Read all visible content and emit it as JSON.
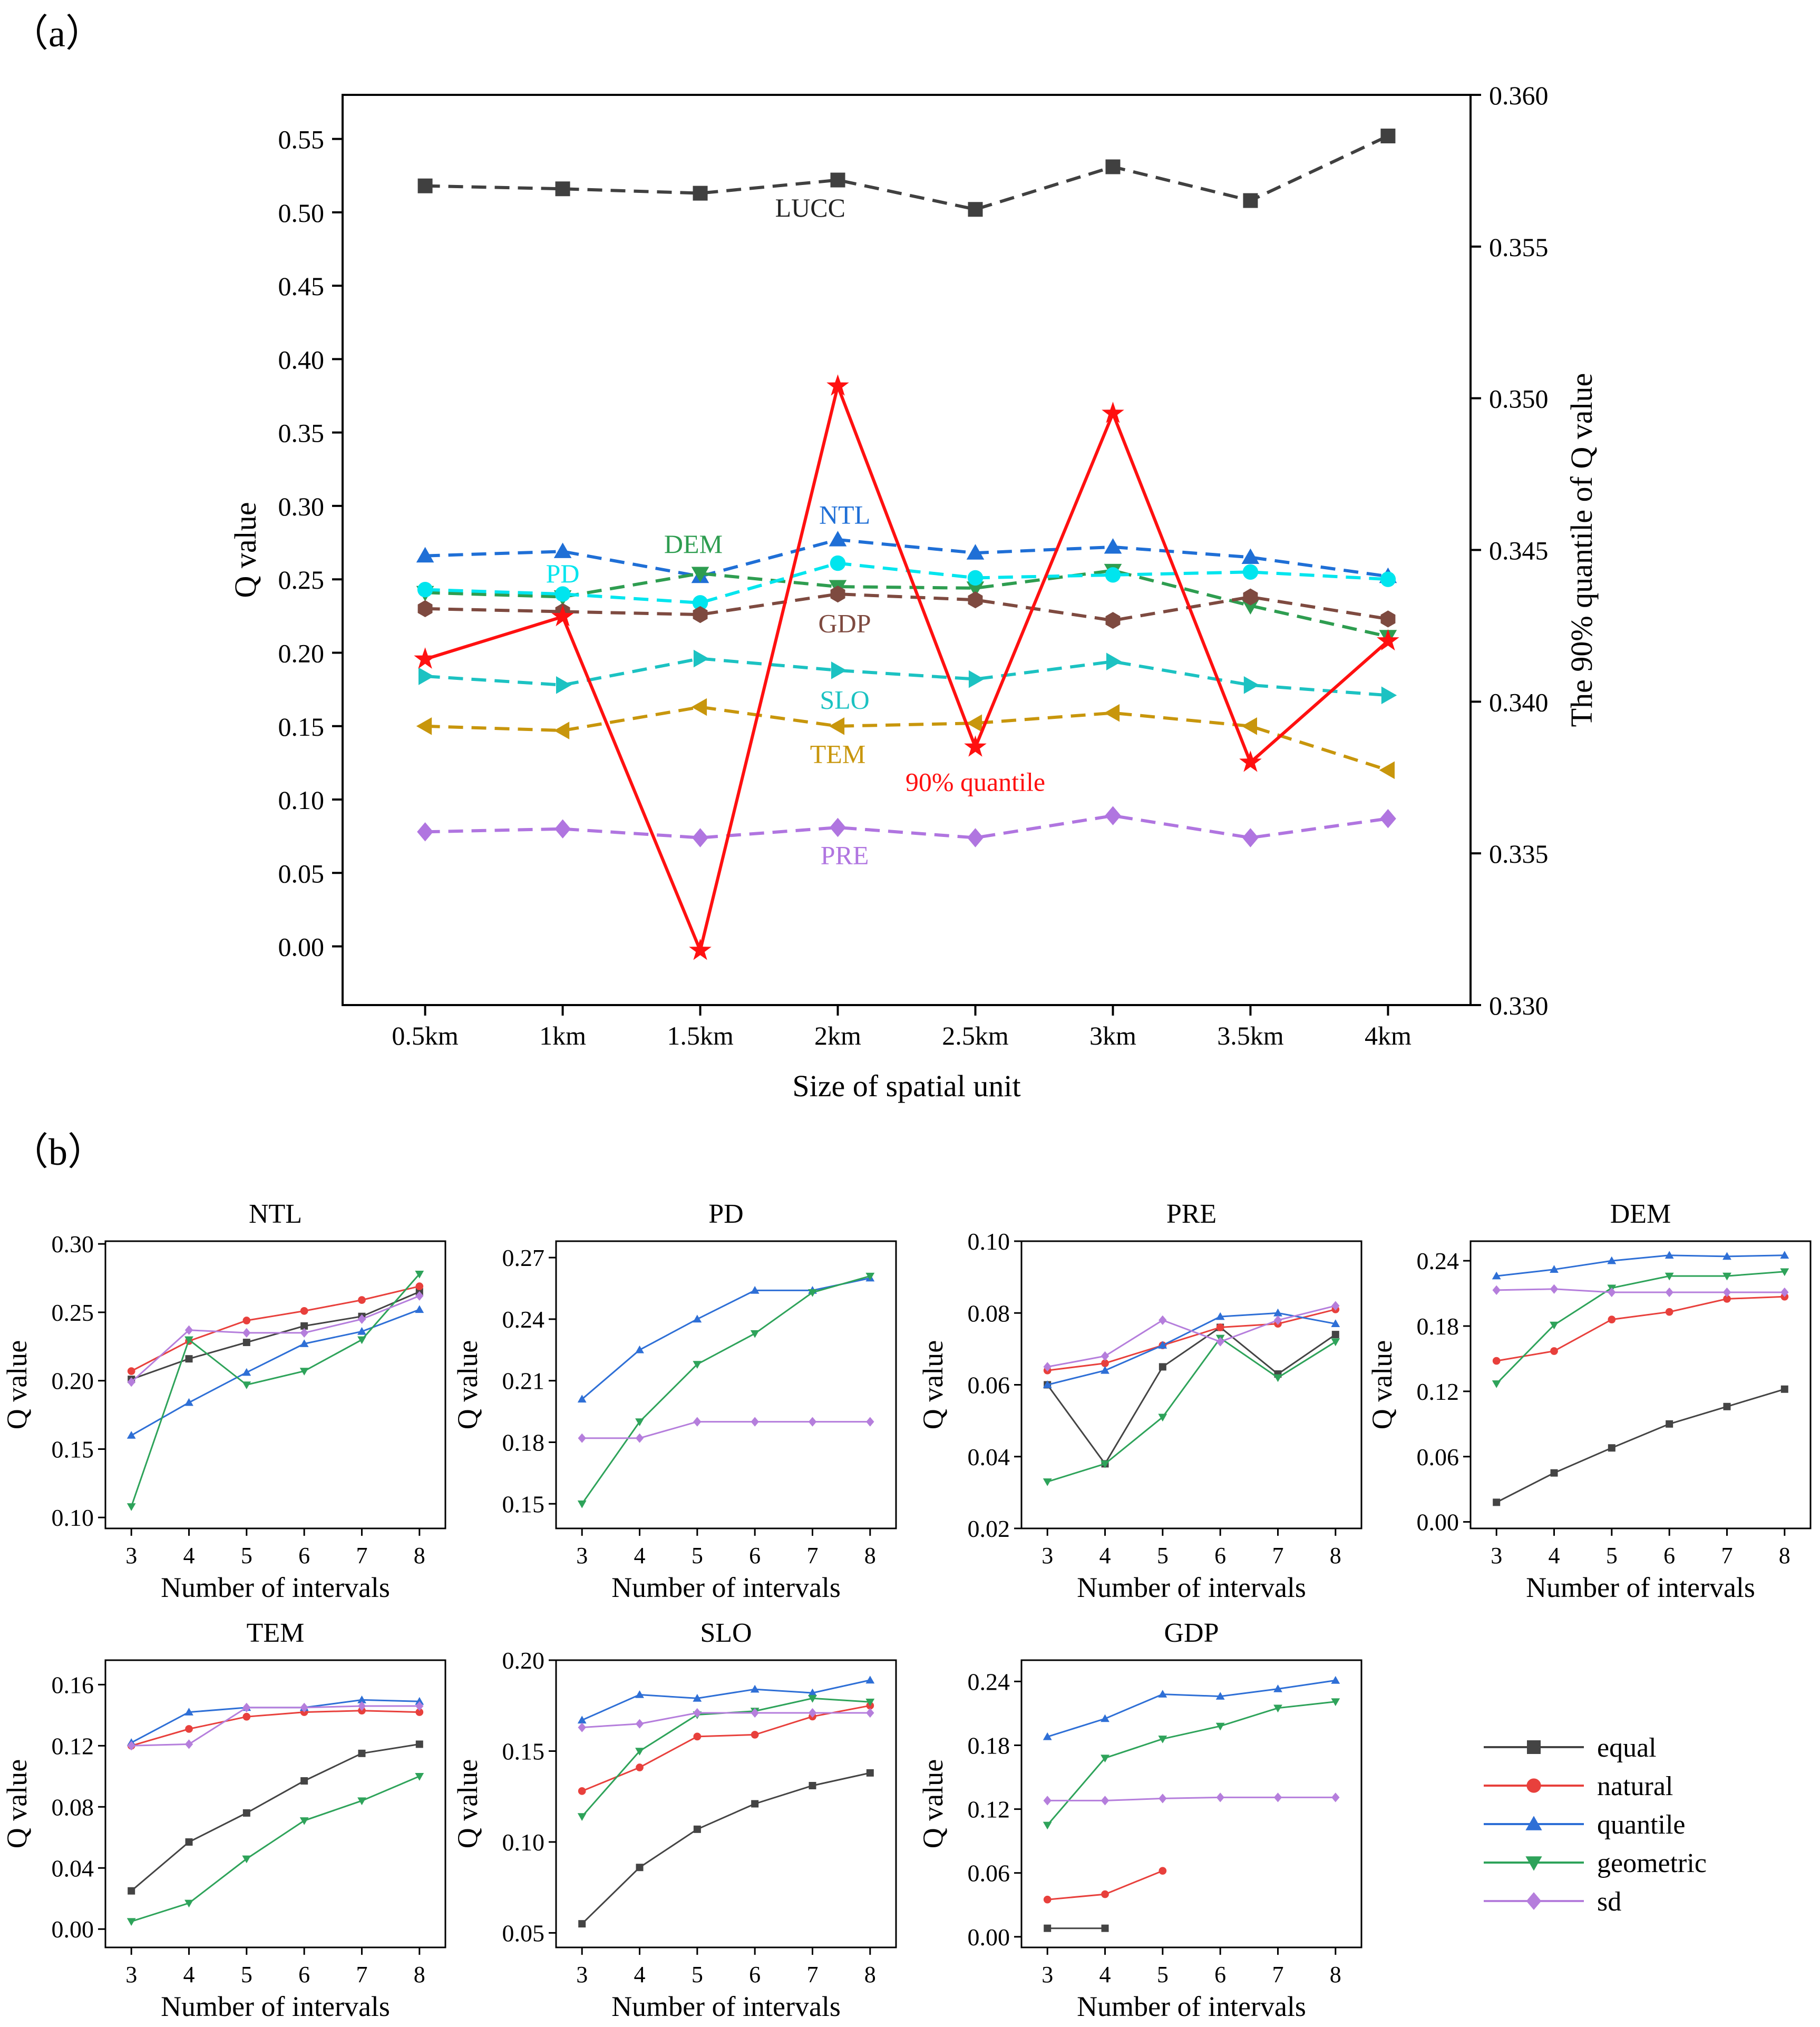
{
  "figure": {
    "label_a": "（a）",
    "label_b": "（b）"
  },
  "chart_data": [
    {
      "type": "line",
      "id": "a",
      "title": "",
      "xlabel": "Size of spatial unit",
      "ylabel": "Q value",
      "y2label": "The 90% quantile of Q value",
      "categories": [
        "0.5km",
        "1km",
        "1.5km",
        "2km",
        "2.5km",
        "3km",
        "3.5km",
        "4km"
      ],
      "ylim": [
        -0.04,
        0.58
      ],
      "yticks": [
        "0.00",
        "0.05",
        "0.10",
        "0.15",
        "0.20",
        "0.25",
        "0.30",
        "0.35",
        "0.40",
        "0.45",
        "0.50",
        "0.55"
      ],
      "y2lim": [
        0.33,
        0.36
      ],
      "y2ticks": [
        "0.330",
        "0.335",
        "0.340",
        "0.345",
        "0.350",
        "0.355",
        "0.360"
      ],
      "grid": false,
      "series": [
        {
          "name": "LUCC",
          "color": "#404040",
          "marker": "square",
          "dash": true,
          "values": [
            0.518,
            0.516,
            0.513,
            0.522,
            0.502,
            0.531,
            0.508,
            0.552
          ]
        },
        {
          "name": "NTL",
          "color": "#1F6FD6",
          "marker": "triangle-up",
          "dash": true,
          "values": [
            0.266,
            0.269,
            0.252,
            0.277,
            0.268,
            0.272,
            0.265,
            0.252
          ]
        },
        {
          "name": "DEM",
          "color": "#2E9D50",
          "marker": "triangle-down",
          "dash": true,
          "values": [
            0.241,
            0.238,
            0.254,
            0.245,
            0.244,
            0.256,
            0.232,
            0.211
          ]
        },
        {
          "name": "PD",
          "color": "#00E5EE",
          "marker": "circle",
          "dash": true,
          "values": [
            0.243,
            0.24,
            0.234,
            0.261,
            0.251,
            0.253,
            0.255,
            0.25
          ]
        },
        {
          "name": "GDP",
          "color": "#7E4A40",
          "marker": "hexagon",
          "dash": true,
          "values": [
            0.23,
            0.228,
            0.226,
            0.24,
            0.236,
            0.222,
            0.238,
            0.223
          ]
        },
        {
          "name": "SLO",
          "color": "#1CC2C2",
          "marker": "triangle-right",
          "dash": true,
          "values": [
            0.184,
            0.178,
            0.196,
            0.188,
            0.182,
            0.194,
            0.178,
            0.171
          ]
        },
        {
          "name": "TEM",
          "color": "#C8960C",
          "marker": "triangle-left",
          "dash": true,
          "values": [
            0.15,
            0.147,
            0.163,
            0.15,
            0.152,
            0.159,
            0.15,
            0.12
          ]
        },
        {
          "name": "PRE",
          "color": "#B075E0",
          "marker": "diamond",
          "dash": true,
          "values": [
            0.078,
            0.08,
            0.074,
            0.081,
            0.074,
            0.089,
            0.074,
            0.087
          ]
        },
        {
          "name": "90% quantile",
          "color": "#FF1010",
          "marker": "star",
          "dash": false,
          "axis": "right",
          "values": [
            0.3414,
            0.3428,
            0.3318,
            0.3504,
            0.3385,
            0.3495,
            0.338,
            0.342
          ]
        }
      ],
      "labels": [
        {
          "text": "LUCC",
          "color": "#222222",
          "x": 2.8,
          "y": 0.497
        },
        {
          "text": "NTL",
          "color": "#1F6FD6",
          "x": 3.05,
          "y": 0.288
        },
        {
          "text": "DEM",
          "color": "#2E9D50",
          "x": 1.95,
          "y": 0.268
        },
        {
          "text": "PD",
          "color": "#00E5EE",
          "x": 1.0,
          "y": 0.248
        },
        {
          "text": "GDP",
          "color": "#7E4A40",
          "x": 3.05,
          "y": 0.214
        },
        {
          "text": "SLO",
          "color": "#1CC2C2",
          "x": 3.05,
          "y": 0.162
        },
        {
          "text": "TEM",
          "color": "#C8960C",
          "x": 3.0,
          "y": 0.125
        },
        {
          "text": "90% quantile",
          "color": "#FF1010",
          "x": 4.0,
          "y": 0.106
        },
        {
          "text": "PRE",
          "color": "#B075E0",
          "x": 3.05,
          "y": 0.056
        }
      ]
    },
    {
      "type": "line",
      "id": "NTL",
      "title": "NTL",
      "xlabel": "Number of intervals",
      "ylabel": "Q value",
      "x": [
        3,
        4,
        5,
        6,
        7,
        8
      ],
      "ylim": [
        0.092,
        0.302
      ],
      "yticks": [
        "0.10",
        "0.15",
        "0.20",
        "0.25",
        "0.30"
      ],
      "series": [
        {
          "name": "equal",
          "values": [
            0.201,
            0.216,
            0.228,
            0.24,
            0.247,
            0.265
          ]
        },
        {
          "name": "natural",
          "values": [
            0.207,
            0.229,
            0.244,
            0.251,
            0.259,
            0.269
          ]
        },
        {
          "name": "quantile",
          "values": [
            0.16,
            0.184,
            0.206,
            0.227,
            0.236,
            0.252
          ]
        },
        {
          "name": "geometric",
          "values": [
            0.108,
            0.23,
            0.197,
            0.207,
            0.23,
            0.278
          ]
        },
        {
          "name": "sd",
          "values": [
            0.199,
            0.237,
            0.235,
            0.235,
            0.245,
            0.262
          ]
        }
      ]
    },
    {
      "type": "line",
      "id": "PD",
      "title": "PD",
      "xlabel": "Number of intervals",
      "ylabel": "Q value",
      "x": [
        3,
        4,
        5,
        6,
        7,
        8
      ],
      "ylim": [
        0.138,
        0.278
      ],
      "yticks": [
        "0.15",
        "0.18",
        "0.21",
        "0.24",
        "0.27"
      ],
      "series": [
        {
          "name": "quantile",
          "values": [
            0.201,
            0.225,
            0.24,
            0.254,
            0.254,
            0.26
          ]
        },
        {
          "name": "geometric",
          "values": [
            0.15,
            0.19,
            0.218,
            0.233,
            0.253,
            0.261
          ]
        },
        {
          "name": "sd",
          "values": [
            0.182,
            0.182,
            0.19,
            0.19,
            0.19,
            0.19
          ]
        }
      ]
    },
    {
      "type": "line",
      "id": "PRE",
      "title": "PRE",
      "xlabel": "Number of intervals",
      "ylabel": "Q value",
      "x": [
        3,
        4,
        5,
        6,
        7,
        8
      ],
      "ylim": [
        0.02,
        0.1
      ],
      "yticks": [
        "0.02",
        "0.04",
        "0.06",
        "0.08",
        "0.10"
      ],
      "series": [
        {
          "name": "equal",
          "values": [
            0.06,
            0.038,
            0.065,
            0.076,
            0.063,
            0.074
          ]
        },
        {
          "name": "natural",
          "values": [
            0.064,
            0.066,
            0.071,
            0.076,
            0.077,
            0.081
          ]
        },
        {
          "name": "quantile",
          "values": [
            0.06,
            0.064,
            0.071,
            0.079,
            0.08,
            0.077
          ]
        },
        {
          "name": "geometric",
          "values": [
            0.033,
            0.038,
            0.051,
            0.073,
            0.062,
            0.072
          ]
        },
        {
          "name": "sd",
          "values": [
            0.065,
            0.068,
            0.078,
            0.072,
            0.078,
            0.082
          ]
        }
      ]
    },
    {
      "type": "line",
      "id": "DEM",
      "title": "DEM",
      "xlabel": "Number of intervals",
      "ylabel": "Q value",
      "x": [
        3,
        4,
        5,
        6,
        7,
        8
      ],
      "ylim": [
        -0.006,
        0.258
      ],
      "yticks": [
        "0.00",
        "0.06",
        "0.12",
        "0.18",
        "0.24"
      ],
      "series": [
        {
          "name": "equal",
          "values": [
            0.018,
            0.045,
            0.068,
            0.09,
            0.106,
            0.122
          ]
        },
        {
          "name": "natural",
          "values": [
            0.148,
            0.157,
            0.186,
            0.193,
            0.205,
            0.207
          ]
        },
        {
          "name": "quantile",
          "values": [
            0.226,
            0.232,
            0.24,
            0.245,
            0.244,
            0.245
          ]
        },
        {
          "name": "geometric",
          "values": [
            0.127,
            0.181,
            0.215,
            0.226,
            0.226,
            0.23
          ]
        },
        {
          "name": "sd",
          "values": [
            0.213,
            0.214,
            0.211,
            0.211,
            0.211,
            0.211
          ]
        }
      ]
    },
    {
      "type": "line",
      "id": "TEM",
      "title": "TEM",
      "xlabel": "Number of intervals",
      "ylabel": "Q value",
      "x": [
        3,
        4,
        5,
        6,
        7,
        8
      ],
      "ylim": [
        -0.012,
        0.176
      ],
      "yticks": [
        "0.00",
        "0.04",
        "0.08",
        "0.12",
        "0.16"
      ],
      "series": [
        {
          "name": "equal",
          "values": [
            0.025,
            0.057,
            0.076,
            0.097,
            0.115,
            0.121
          ]
        },
        {
          "name": "natural",
          "values": [
            0.12,
            0.131,
            0.139,
            0.142,
            0.143,
            0.142
          ]
        },
        {
          "name": "quantile",
          "values": [
            0.122,
            0.142,
            0.145,
            0.145,
            0.15,
            0.149
          ]
        },
        {
          "name": "geometric",
          "values": [
            0.005,
            0.017,
            0.046,
            0.071,
            0.084,
            0.1
          ]
        },
        {
          "name": "sd",
          "values": [
            0.12,
            0.121,
            0.145,
            0.145,
            0.146,
            0.146
          ]
        }
      ]
    },
    {
      "type": "line",
      "id": "SLO",
      "title": "SLO",
      "xlabel": "Number of intervals",
      "ylabel": "Q value",
      "x": [
        3,
        4,
        5,
        6,
        7,
        8
      ],
      "ylim": [
        0.042,
        0.2
      ],
      "yticks": [
        "0.05",
        "0.10",
        "0.15",
        "0.20"
      ],
      "series": [
        {
          "name": "equal",
          "values": [
            0.055,
            0.086,
            0.107,
            0.121,
            0.131,
            0.138
          ]
        },
        {
          "name": "natural",
          "values": [
            0.128,
            0.141,
            0.158,
            0.159,
            0.169,
            0.175
          ]
        },
        {
          "name": "quantile",
          "values": [
            0.167,
            0.181,
            0.179,
            0.184,
            0.182,
            0.189
          ]
        },
        {
          "name": "geometric",
          "values": [
            0.114,
            0.15,
            0.17,
            0.172,
            0.179,
            0.177
          ]
        },
        {
          "name": "sd",
          "values": [
            0.163,
            0.165,
            0.171,
            0.171,
            0.171,
            0.171
          ]
        }
      ]
    },
    {
      "type": "line",
      "id": "GDP",
      "title": "GDP",
      "xlabel": "Number of intervals",
      "ylabel": "Q value",
      "x": [
        3,
        4,
        5,
        6,
        7,
        8
      ],
      "ylim": [
        -0.01,
        0.26
      ],
      "yticks": [
        "0.00",
        "0.06",
        "0.12",
        "0.18",
        "0.24"
      ],
      "series": [
        {
          "name": "equal",
          "x": [
            3,
            4
          ],
          "values": [
            0.008,
            0.008
          ]
        },
        {
          "name": "natural",
          "x": [
            3,
            4,
            5
          ],
          "values": [
            0.035,
            0.04,
            0.062
          ]
        },
        {
          "name": "quantile",
          "values": [
            0.188,
            0.205,
            0.228,
            0.226,
            0.233,
            0.241
          ]
        },
        {
          "name": "geometric",
          "values": [
            0.105,
            0.168,
            0.186,
            0.198,
            0.215,
            0.221
          ]
        },
        {
          "name": "sd",
          "values": [
            0.128,
            0.128,
            0.13,
            0.131,
            0.131,
            0.131
          ]
        }
      ]
    }
  ],
  "legend_b": {
    "placement": "bottom-right",
    "items": [
      {
        "name": "equal",
        "color": "#444444",
        "marker": "square"
      },
      {
        "name": "natural",
        "color": "#E8403C",
        "marker": "circle"
      },
      {
        "name": "quantile",
        "color": "#2E6FD6",
        "marker": "triangle-up"
      },
      {
        "name": "geometric",
        "color": "#2EA35A",
        "marker": "triangle-down"
      },
      {
        "name": "sd",
        "color": "#B57EDC",
        "marker": "diamond"
      }
    ]
  }
}
